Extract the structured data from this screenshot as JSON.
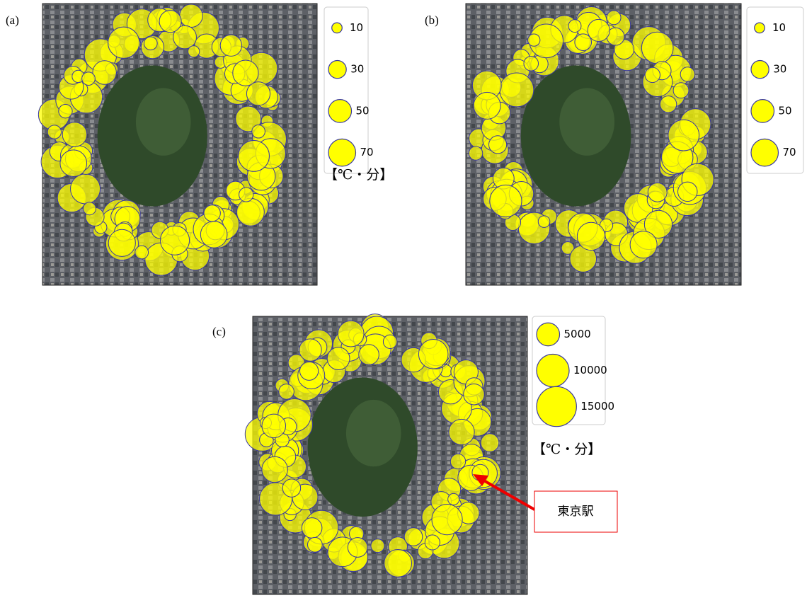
{
  "panels": [
    {
      "label": "(a)",
      "legend": [
        10,
        30,
        50,
        70
      ],
      "unit": "【℃・分】"
    },
    {
      "label": "(b)",
      "legend": [
        10,
        30,
        50,
        70
      ]
    },
    {
      "label": "(c)",
      "legend": [
        5000,
        10000,
        15000
      ],
      "unit": "【℃・分】",
      "annotation": "東京駅"
    }
  ]
}
